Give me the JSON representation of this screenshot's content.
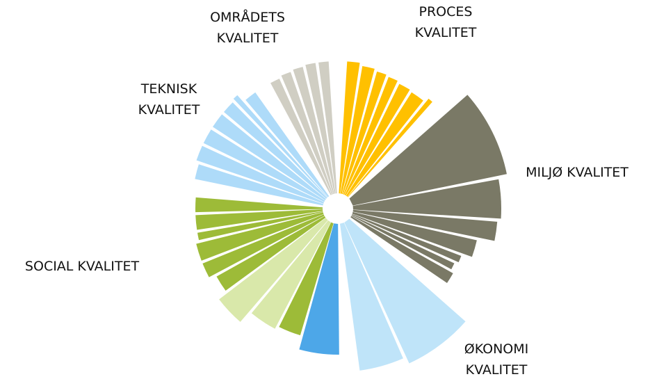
{
  "chart_data": {
    "type": "polar",
    "series": [
      {
        "name": "PROCES\nKVALITET",
        "colors": [
          "#FFC000",
          "#FFC000",
          "#FFC000",
          "#FFC000",
          "#FFC000",
          "#FFC000",
          "#FFC000"
        ],
        "values": [
          212,
          208,
          205,
          203,
          200,
          198,
          205
        ],
        "weights": [
          5,
          5,
          4,
          4,
          5,
          6,
          2
        ]
      },
      {
        "name": "MILJØ KVALITET",
        "colors": [
          "#7A7966",
          "#7A7966",
          "#7A7966",
          "#7A7966",
          "#7A7966",
          "#7A7966",
          "#7A7966"
        ],
        "values": [
          248,
          235,
          230,
          205,
          190,
          185,
          190
        ],
        "weights": [
          30,
          14,
          7,
          7,
          3,
          3,
          5
        ]
      },
      {
        "name": "ØKONOMI\nKVALITET",
        "colors": [
          "#BFE4F9",
          "#BFE4F9"
        ],
        "values": [
          245,
          235
        ],
        "weights": [
          24,
          16
        ]
      },
      {
        "name": "SOCIAL KVALITET",
        "colors": [
          "#4DA7E8",
          "#9DBB38",
          "#D9E8AA",
          "#D9E8AA",
          "#9DBB38",
          "#9DBB38",
          "#9DBB38",
          "#9DBB38",
          "#9DBB38",
          "#9DBB38"
        ],
        "values": [
          210,
          190,
          195,
          215,
          200,
          210,
          210,
          205,
          205,
          205
        ],
        "weights": [
          16,
          10,
          12,
          12,
          7,
          6,
          7,
          3,
          6,
          6
        ]
      },
      {
        "name": "TEKNISK\nKVALITET",
        "colors": [
          "#AEDBF9",
          "#AEDBF9",
          "#AEDBF9",
          "#AEDBF9",
          "#AEDBF9",
          "#AEDBF9",
          "#AEDBF9"
        ],
        "values": [
          210,
          215,
          215,
          215,
          215,
          218,
          205
        ],
        "weights": [
          6,
          6,
          6,
          6,
          5,
          2,
          5
        ]
      },
      {
        "name": "OMRÅDETS\nKVALITET",
        "colors": [
          "#D0CEC3",
          "#D0CEC3",
          "#D0CEC3",
          "#D0CEC3",
          "#D0CEC3"
        ],
        "values": [
          205,
          208,
          210,
          212,
          212
        ],
        "weights": [
          4,
          4,
          4,
          4,
          4
        ]
      }
    ]
  }
}
